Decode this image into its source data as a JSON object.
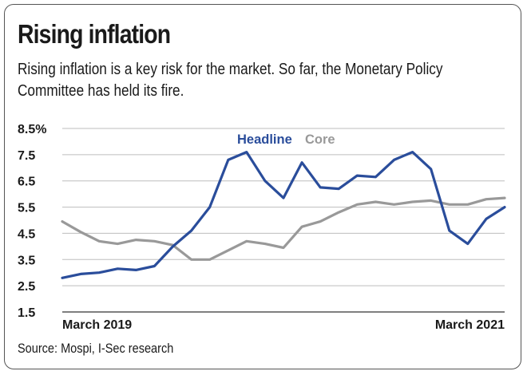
{
  "title": "Rising inflation",
  "subtitle": "Rising inflation is a key risk for the market. So far, the Monetary Policy Committee has held its fire.",
  "source": "Source: Mospi, I-Sec research",
  "chart_data": {
    "type": "line",
    "x_labels": [
      "March 2019",
      "March 2021"
    ],
    "x_range": [
      "March 2019",
      "March 2021"
    ],
    "y_ticks": [
      "8.5%",
      "7.5",
      "6.5",
      "5.5",
      "4.5",
      "3.5",
      "2.5",
      "1.5"
    ],
    "ylim": [
      1.5,
      8.5
    ],
    "grid": true,
    "legend_position": "top-center",
    "series": [
      {
        "name": "Headline",
        "color": "#2a4d9b",
        "values": [
          2.8,
          2.95,
          3.0,
          3.15,
          3.1,
          3.25,
          4.0,
          4.6,
          5.5,
          7.3,
          7.6,
          6.5,
          5.85,
          7.2,
          6.25,
          6.2,
          6.7,
          6.65,
          7.3,
          7.6,
          6.95,
          4.6,
          4.1,
          5.05,
          5.5
        ]
      },
      {
        "name": "Core",
        "color": "#999999",
        "values": [
          4.95,
          4.55,
          4.2,
          4.1,
          4.25,
          4.2,
          4.05,
          3.5,
          3.5,
          3.85,
          4.2,
          4.1,
          3.95,
          4.75,
          4.95,
          5.3,
          5.6,
          5.7,
          5.6,
          5.7,
          5.75,
          5.6,
          5.6,
          5.8,
          5.85
        ]
      }
    ]
  }
}
